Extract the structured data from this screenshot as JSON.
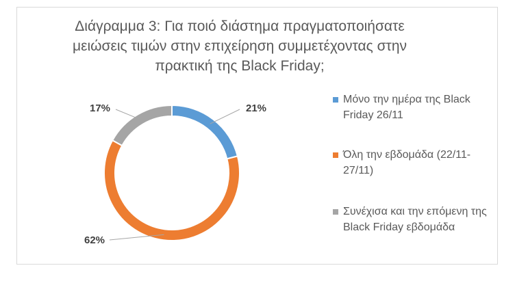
{
  "chart_data": {
    "type": "pie",
    "donut": true,
    "title": "Διάγραμμα 3: Για ποιό διάστημα πραγματοποιήσατε μειώσεις τιμών στην επιχείρηση συμμετέχοντας στην πρακτική της Black Friday;",
    "categories": [
      "Μόνο την ημέρα της Black Friday 26/11",
      "Όλη την εβδομάδα (22/11-27/11)",
      "Συνέχισα και την επόμενη της Black Friday εβδομάδα"
    ],
    "values": [
      21,
      62,
      17
    ],
    "data_labels": [
      "21%",
      "62%",
      "17%"
    ],
    "colors": [
      "#5b9bd5",
      "#ed7d31",
      "#a5a5a5"
    ],
    "legend_position": "right"
  }
}
